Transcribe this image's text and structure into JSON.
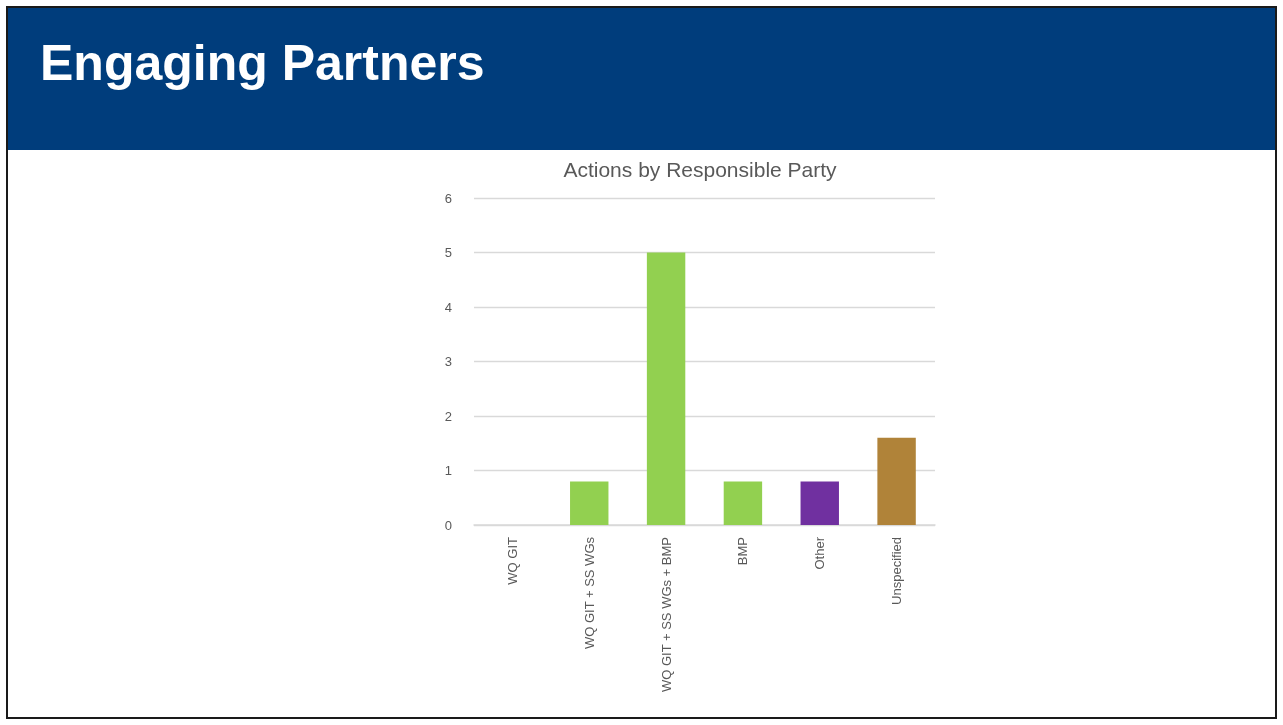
{
  "chart_data": {
    "type": "bar",
    "title": "Engaging Partners",
    "subtitle": "Actions by Responsible Party",
    "categories": [
      "WQ GIT",
      "WQ GIT + SS WGs",
      "WQ GIT + SS WGs + BMP",
      "BMP",
      "Other",
      "Unspecified"
    ],
    "values": [
      0,
      0.8,
      5,
      0.8,
      0.8,
      1.6
    ],
    "colors": [
      "#92d050",
      "#92d050",
      "#92d050",
      "#92d050",
      "#7030a0",
      "#b08339"
    ],
    "ylim": [
      0,
      6
    ],
    "yticks": [
      0,
      1,
      2,
      3,
      4,
      5,
      6
    ],
    "grid": "y"
  }
}
